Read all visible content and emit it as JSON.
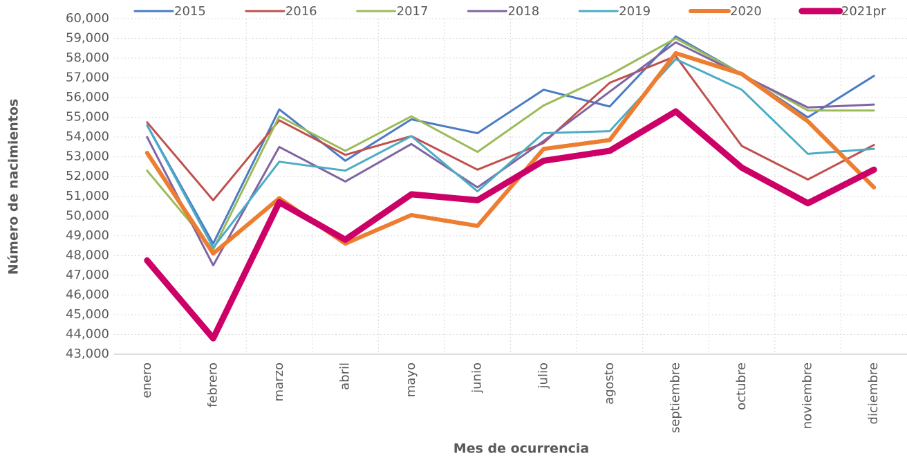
{
  "chart_data": {
    "type": "line",
    "y_label": "Número de nacimientos",
    "x_label": "Mes de ocurrencia",
    "categories": [
      "enero",
      "febrero",
      "marzo",
      "abril",
      "mayo",
      "junio",
      "julio",
      "agosto",
      "septiembre",
      "octubre",
      "noviembre",
      "diciembre"
    ],
    "series": [
      {
        "name": "2015",
        "color": "#4a7bc4",
        "width": 3,
        "values": [
          54600,
          48600,
          55400,
          52800,
          54900,
          54200,
          56400,
          55550,
          59100,
          57200,
          55000,
          57100
        ]
      },
      {
        "name": "2016",
        "color": "#c0504d",
        "width": 3,
        "values": [
          54750,
          50800,
          54850,
          53100,
          54050,
          52350,
          53700,
          56750,
          58100,
          53550,
          51850,
          53600
        ]
      },
      {
        "name": "2017",
        "color": "#9bbb59",
        "width": 3,
        "values": [
          52300,
          48300,
          55050,
          53300,
          55050,
          53250,
          55600,
          57150,
          59000,
          57200,
          55350,
          55350
        ]
      },
      {
        "name": "2018",
        "color": "#8064a2",
        "width": 3,
        "values": [
          54000,
          47500,
          53500,
          51750,
          53650,
          51450,
          53800,
          56300,
          58800,
          57150,
          55500,
          55650
        ]
      },
      {
        "name": "2019",
        "color": "#4bacc6",
        "width": 3,
        "values": [
          54600,
          48400,
          52750,
          52300,
          54050,
          51250,
          54200,
          54300,
          57950,
          56400,
          53150,
          53400
        ]
      },
      {
        "name": "2020",
        "color": "#ed7d31",
        "width": 6,
        "values": [
          53200,
          48100,
          50900,
          48600,
          50050,
          49500,
          53400,
          53850,
          58250,
          57200,
          54800,
          51450
        ]
      },
      {
        "name": "2021pr",
        "color": "#cc0066",
        "width": 9,
        "values": [
          47750,
          43800,
          50700,
          48800,
          51100,
          50800,
          52800,
          53300,
          55300,
          52450,
          50650,
          52350
        ]
      }
    ],
    "ylim": [
      43000,
      60000
    ],
    "yticks": [
      {
        "value": 43000,
        "label": "43,000"
      },
      {
        "value": 44000,
        "label": "44,000"
      },
      {
        "value": 45000,
        "label": "45,000"
      },
      {
        "value": 46000,
        "label": "46,000"
      },
      {
        "value": 47000,
        "label": "47,000"
      },
      {
        "value": 48000,
        "label": "48,000"
      },
      {
        "value": 49000,
        "label": "49,000"
      },
      {
        "value": 50000,
        "label": "50,000"
      },
      {
        "value": 51000,
        "label": "51,000"
      },
      {
        "value": 52000,
        "label": "52,000"
      },
      {
        "value": 53000,
        "label": "53,000"
      },
      {
        "value": 54000,
        "label": "54,000"
      },
      {
        "value": 55000,
        "label": "55,000"
      },
      {
        "value": 56000,
        "label": "56,000"
      },
      {
        "value": 57000,
        "label": "57,000"
      },
      {
        "value": 58000,
        "label": "58,000"
      },
      {
        "value": 59000,
        "label": "59,000"
      },
      {
        "value": 60000,
        "label": "60,000"
      }
    ],
    "grid": true,
    "legend": "top"
  }
}
